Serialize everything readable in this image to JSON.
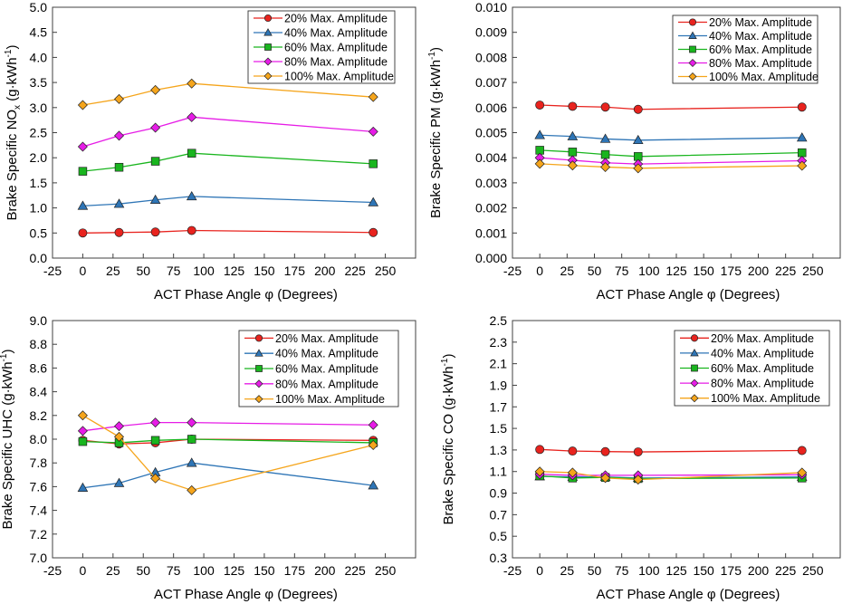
{
  "chart_data": [
    {
      "type": "line",
      "id": "nox",
      "title": "",
      "xlabel": "ACT Phase Angle φ (Degrees)",
      "ylabel_main": "Brake Specific NO",
      "ylabel_sub": "x",
      "ylabel_units": " (g·kWh",
      "ylabel_sup": "-1",
      "ylabel_end": ")",
      "xlim": [
        -25,
        275
      ],
      "ylim": [
        0,
        5
      ],
      "xticks": [
        -25,
        0,
        25,
        50,
        75,
        100,
        125,
        150,
        175,
        200,
        225,
        250
      ],
      "yticks": [
        0,
        0.5,
        1,
        1.5,
        2,
        2.5,
        3,
        3.5,
        4,
        4.5,
        5
      ],
      "ydecimals": 1,
      "legend": "top-right",
      "x": [
        0,
        30,
        60,
        90,
        240
      ],
      "series": [
        {
          "name": "20% Max. Amplitude",
          "color": "#e8231e",
          "marker": "circle",
          "values": [
            0.5,
            0.51,
            0.52,
            0.55,
            0.51
          ]
        },
        {
          "name": "40% Max. Amplitude",
          "color": "#2e75b6",
          "marker": "triangle",
          "values": [
            1.04,
            1.08,
            1.16,
            1.23,
            1.11
          ]
        },
        {
          "name": "60% Max. Amplitude",
          "color": "#19b51e",
          "marker": "square",
          "values": [
            1.73,
            1.81,
            1.93,
            2.09,
            1.88
          ]
        },
        {
          "name": "80% Max. Amplitude",
          "color": "#e61ce6",
          "marker": "diamond",
          "values": [
            2.22,
            2.44,
            2.6,
            2.81,
            2.52
          ]
        },
        {
          "name": "100% Max. Amplitude",
          "color": "#f5a51c",
          "marker": "diamond",
          "values": [
            3.05,
            3.17,
            3.35,
            3.48,
            3.21
          ]
        }
      ]
    },
    {
      "type": "line",
      "id": "pm",
      "title": "",
      "xlabel": "ACT Phase Angle φ (Degrees)",
      "ylabel_main": "Brake Specific PM",
      "ylabel_sub": "",
      "ylabel_units": " (g·kWh",
      "ylabel_sup": "-1",
      "ylabel_end": ")",
      "xlim": [
        -25,
        275
      ],
      "ylim": [
        0,
        0.01
      ],
      "xticks": [
        -25,
        0,
        25,
        50,
        75,
        100,
        125,
        150,
        175,
        200,
        225,
        250
      ],
      "yticks": [
        0,
        0.001,
        0.002,
        0.003,
        0.004,
        0.005,
        0.006,
        0.007,
        0.008,
        0.009,
        0.01
      ],
      "ydecimals": 3,
      "legend": "top-right",
      "x": [
        0,
        30,
        60,
        90,
        240
      ],
      "series": [
        {
          "name": "20% Max. Amplitude",
          "color": "#e8231e",
          "marker": "circle",
          "values": [
            0.0061,
            0.00605,
            0.00602,
            0.00593,
            0.00602
          ]
        },
        {
          "name": "40% Max. Amplitude",
          "color": "#2e75b6",
          "marker": "triangle",
          "values": [
            0.0049,
            0.00485,
            0.00475,
            0.0047,
            0.0048
          ]
        },
        {
          "name": "60% Max. Amplitude",
          "color": "#19b51e",
          "marker": "square",
          "values": [
            0.0043,
            0.00423,
            0.00413,
            0.00405,
            0.0042
          ]
        },
        {
          "name": "80% Max. Amplitude",
          "color": "#e61ce6",
          "marker": "diamond",
          "values": [
            0.004,
            0.0039,
            0.0038,
            0.00375,
            0.00388
          ]
        },
        {
          "name": "100% Max. Amplitude",
          "color": "#f5a51c",
          "marker": "diamond",
          "values": [
            0.00376,
            0.00369,
            0.00363,
            0.00358,
            0.00368
          ]
        }
      ]
    },
    {
      "type": "line",
      "id": "uhc",
      "title": "",
      "xlabel": "ACT Phase Angle φ (Degrees)",
      "ylabel_main": "Brake Specific UHC",
      "ylabel_sub": "",
      "ylabel_units": " (g·kWh",
      "ylabel_sup": "-1",
      "ylabel_end": ")",
      "xlim": [
        -25,
        275
      ],
      "ylim": [
        7.0,
        9.0
      ],
      "xticks": [
        -25,
        0,
        25,
        50,
        75,
        100,
        125,
        150,
        175,
        200,
        225,
        250
      ],
      "yticks": [
        7.0,
        7.2,
        7.4,
        7.6,
        7.8,
        8.0,
        8.2,
        8.4,
        8.6,
        8.8,
        9.0
      ],
      "ydecimals": 1,
      "legend": "top-right",
      "x": [
        0,
        30,
        60,
        90,
        240
      ],
      "series": [
        {
          "name": "20% Max. Amplitude",
          "color": "#e8231e",
          "marker": "circle",
          "values": [
            7.99,
            7.96,
            7.97,
            8.0,
            7.99
          ]
        },
        {
          "name": "40% Max. Amplitude",
          "color": "#2e75b6",
          "marker": "triangle",
          "values": [
            7.59,
            7.63,
            7.72,
            7.8,
            7.61
          ]
        },
        {
          "name": "60% Max. Amplitude",
          "color": "#19b51e",
          "marker": "square",
          "values": [
            7.98,
            7.97,
            7.99,
            8.0,
            7.97
          ]
        },
        {
          "name": "80% Max. Amplitude",
          "color": "#e61ce6",
          "marker": "diamond",
          "values": [
            8.07,
            8.11,
            8.14,
            8.14,
            8.12
          ]
        },
        {
          "name": "100% Max. Amplitude",
          "color": "#f5a51c",
          "marker": "diamond",
          "values": [
            8.2,
            8.02,
            7.67,
            7.57,
            7.95
          ]
        }
      ]
    },
    {
      "type": "line",
      "id": "co",
      "title": "",
      "xlabel": "ACT Phase Angle φ (Degrees)",
      "ylabel_main": "Brake Specific CO",
      "ylabel_sub": "",
      "ylabel_units": " (g·kWh",
      "ylabel_sup": "-1",
      "ylabel_end": ")",
      "xlim": [
        -25,
        275
      ],
      "ylim": [
        0.3,
        2.5
      ],
      "xticks": [
        -25,
        0,
        25,
        50,
        75,
        100,
        125,
        150,
        175,
        200,
        225,
        250
      ],
      "yticks": [
        0.3,
        0.5,
        0.7,
        0.9,
        1.1,
        1.3,
        1.5,
        1.7,
        1.9,
        2.1,
        2.3,
        2.5
      ],
      "ydecimals": 1,
      "legend": "top-right",
      "x": [
        0,
        30,
        60,
        90,
        240
      ],
      "series": [
        {
          "name": "20% Max. Amplitude",
          "color": "#e8231e",
          "marker": "circle",
          "values": [
            1.305,
            1.29,
            1.285,
            1.282,
            1.295
          ]
        },
        {
          "name": "40% Max. Amplitude",
          "color": "#2e75b6",
          "marker": "triangle",
          "values": [
            1.055,
            1.05,
            1.05,
            1.04,
            1.05
          ]
        },
        {
          "name": "60% Max. Amplitude",
          "color": "#19b51e",
          "marker": "square",
          "values": [
            1.06,
            1.04,
            1.045,
            1.035,
            1.04
          ]
        },
        {
          "name": "80% Max. Amplitude",
          "color": "#e61ce6",
          "marker": "diamond",
          "values": [
            1.075,
            1.065,
            1.065,
            1.065,
            1.07
          ]
        },
        {
          "name": "100% Max. Amplitude",
          "color": "#f5a51c",
          "marker": "diamond",
          "values": [
            1.1,
            1.09,
            1.04,
            1.025,
            1.09
          ]
        }
      ]
    }
  ]
}
